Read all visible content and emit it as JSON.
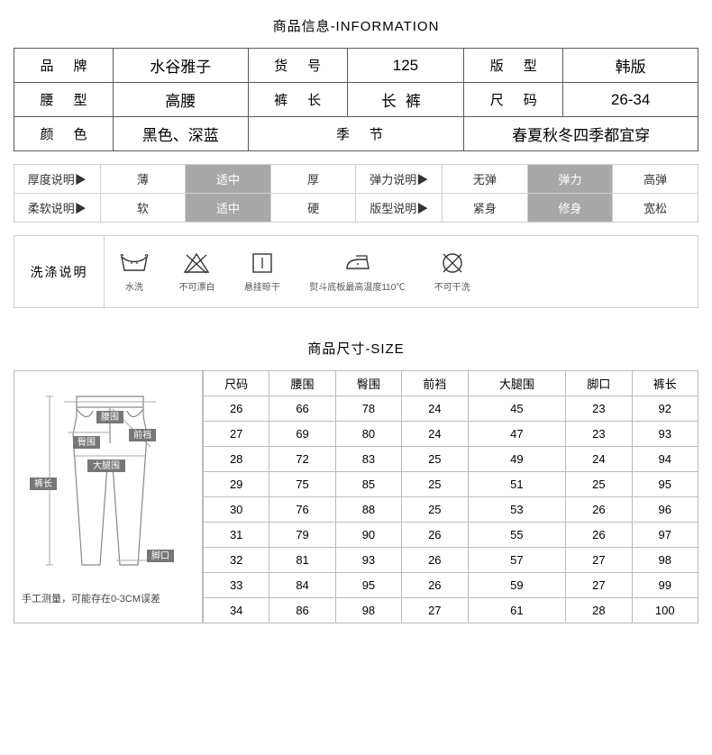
{
  "titles": {
    "info": "商品信息-INFORMATION",
    "size": "商品尺寸-SIZE"
  },
  "info": {
    "rows": [
      {
        "l1": "品牌",
        "v1": "水谷雅子",
        "l2": "货号",
        "v2": "125",
        "l3": "版型",
        "v3": "韩版"
      },
      {
        "l1": "腰型",
        "v1": "高腰",
        "l2": "裤长",
        "v2": "长裤",
        "l3": "尺码",
        "v3": "26-34"
      }
    ],
    "row3": {
      "l1": "颜色",
      "v1": "黑色、深蓝",
      "l2": "季节",
      "v2": "春夏秋冬四季都宜穿"
    }
  },
  "attrs": {
    "r1a": {
      "hdr": "厚度说明▶",
      "opts": [
        "薄",
        "适中",
        "厚"
      ],
      "sel": 1
    },
    "r1b": {
      "hdr": "弹力说明▶",
      "opts": [
        "无弹",
        "弹力",
        "高弹"
      ],
      "sel": 1
    },
    "r2a": {
      "hdr": "柔软说明▶",
      "opts": [
        "软",
        "适中",
        "硬"
      ],
      "sel": 1
    },
    "r2b": {
      "hdr": "版型说明▶",
      "opts": [
        "紧身",
        "修身",
        "宽松"
      ],
      "sel": 1
    }
  },
  "wash": {
    "label": "洗涤说明",
    "items": [
      {
        "name": "水洗"
      },
      {
        "name": "不可漂白"
      },
      {
        "name": "悬挂晾干"
      },
      {
        "name": "熨斗底板最高温度110℃"
      },
      {
        "name": "不可干洗"
      }
    ]
  },
  "size": {
    "headers": [
      "尺码",
      "腰围",
      "臀围",
      "前裆",
      "大腿围",
      "脚口",
      "裤长"
    ],
    "rows": [
      [
        "26",
        "66",
        "78",
        "24",
        "45",
        "23",
        "92"
      ],
      [
        "27",
        "69",
        "80",
        "24",
        "47",
        "23",
        "93"
      ],
      [
        "28",
        "72",
        "83",
        "25",
        "49",
        "24",
        "94"
      ],
      [
        "29",
        "75",
        "85",
        "25",
        "51",
        "25",
        "95"
      ],
      [
        "30",
        "76",
        "88",
        "25",
        "53",
        "26",
        "96"
      ],
      [
        "31",
        "79",
        "90",
        "26",
        "55",
        "26",
        "97"
      ],
      [
        "32",
        "81",
        "93",
        "26",
        "57",
        "27",
        "98"
      ],
      [
        "33",
        "84",
        "95",
        "26",
        "59",
        "27",
        "99"
      ],
      [
        "34",
        "86",
        "98",
        "27",
        "61",
        "28",
        "100"
      ]
    ],
    "note": "手工测量，可能存在0-3CM误差",
    "diagram_labels": {
      "waist": "腰围",
      "hip": "臀围",
      "rise": "前裆",
      "thigh": "大腿围",
      "length": "裤长",
      "hem": "脚口"
    }
  },
  "colors": {
    "info_border": "#5a5a5a",
    "attr_border": "#d0d0d0",
    "attr_sel_bg": "#a8a8a8",
    "attr_sel_fg": "#ffffff",
    "size_border": "#bcbcbc",
    "text": "#000000",
    "subtext": "#555555",
    "bg": "#ffffff"
  }
}
